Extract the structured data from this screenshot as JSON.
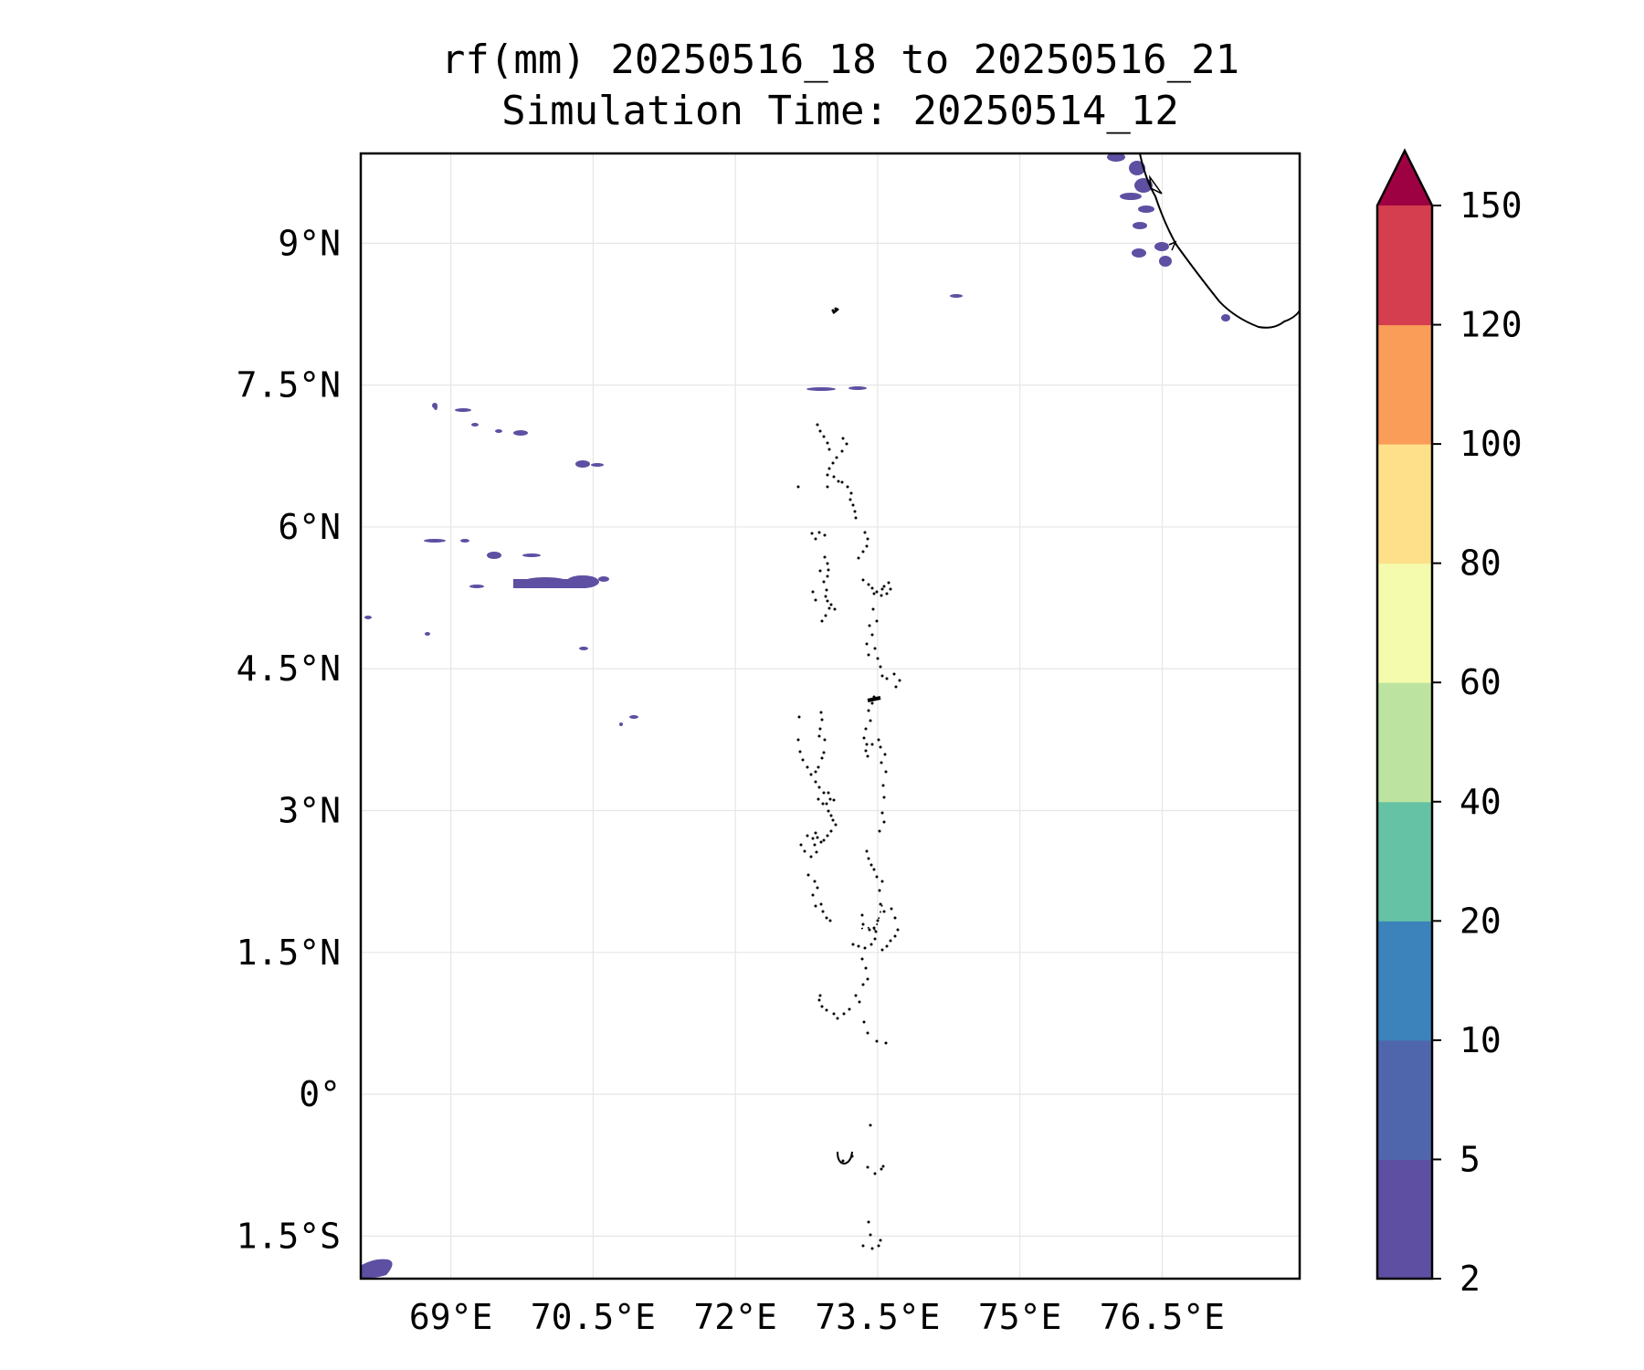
{
  "title": {
    "line1": "rf(mm) 20250516_18 to 20250516_21",
    "line2": "Simulation Time: 20250514_12"
  },
  "map": {
    "lon_range": [
      68.05,
      77.95
    ],
    "lat_range": [
      -1.95,
      9.95
    ],
    "lon_ticks": [
      69,
      70.5,
      72,
      73.5,
      75,
      76.5
    ],
    "lon_tick_labels": [
      "69°E",
      "70.5°E",
      "72°E",
      "73.5°E",
      "75°E",
      "76.5°E"
    ],
    "lat_ticks": [
      9,
      7.5,
      6,
      4.5,
      3,
      1.5,
      0,
      -1.5
    ],
    "lat_tick_labels": [
      "9°N",
      "7.5°N",
      "6°N",
      "4.5°N",
      "3°N",
      "1.5°N",
      "0°",
      "1.5°S"
    ],
    "gridlines": true
  },
  "colorbar": {
    "levels": [
      2,
      5,
      10,
      20,
      40,
      60,
      80,
      100,
      120,
      150
    ],
    "level_labels": [
      "2",
      "5",
      "10",
      "20",
      "40",
      "60",
      "80",
      "100",
      "120",
      "150"
    ],
    "colors": [
      "#5e4fa2",
      "#5066ac",
      "#3b83ba",
      "#66c2a5",
      "#bce4a0",
      "#f4fbad",
      "#fee08b",
      "#f99d59",
      "#d53e4f"
    ],
    "extend_color": "#9e0142",
    "extend": "max"
  },
  "rain_color": "#5e4fa2",
  "coast_color": "#000000"
}
